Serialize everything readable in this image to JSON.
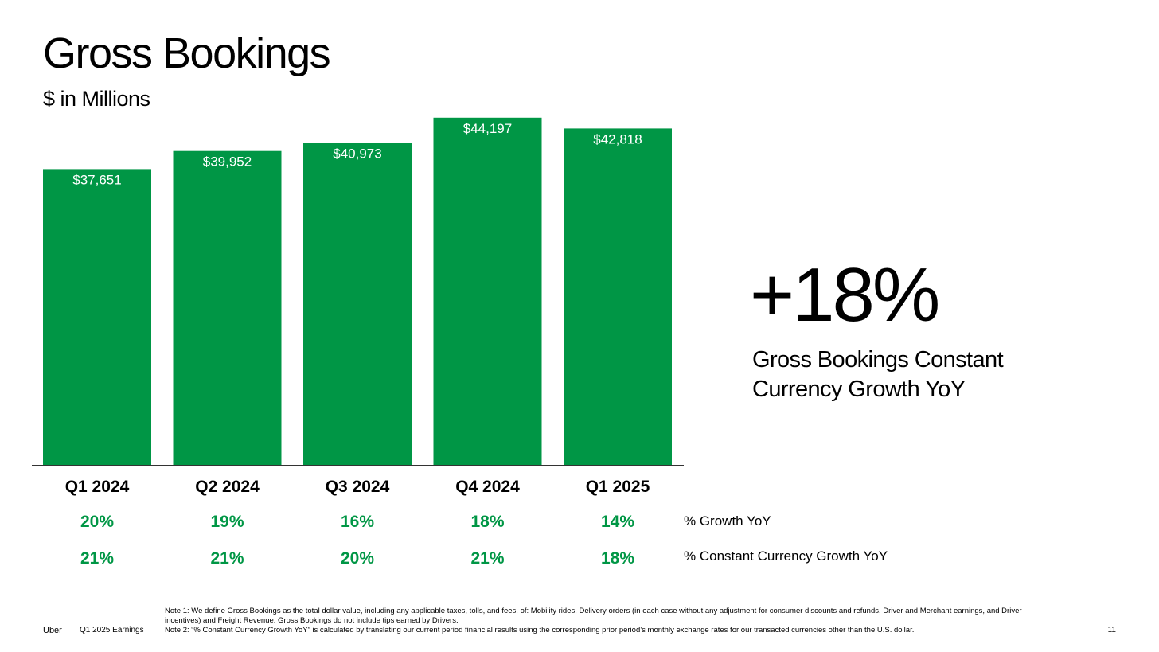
{
  "header": {
    "title": "Gross Bookings",
    "subtitle": "$ in Millions"
  },
  "chart_data": {
    "type": "bar",
    "title": "Gross Bookings",
    "subtitle": "$ in Millions",
    "categories": [
      "Q1 2024",
      "Q2 2024",
      "Q3 2024",
      "Q4 2024",
      "Q1 2025"
    ],
    "values": [
      37651,
      39952,
      40973,
      44197,
      42818
    ],
    "data_labels": [
      "$37,651",
      "$39,952",
      "$40,973",
      "$44,197",
      "$42,818"
    ],
    "ylim": [
      0,
      46000
    ],
    "grid": false,
    "bar_color": "#009645",
    "growth_rows": [
      {
        "label": "% Growth YoY",
        "values": [
          "20%",
          "19%",
          "16%",
          "18%",
          "14%"
        ]
      },
      {
        "label": "% Constant Currency Growth YoY",
        "values": [
          "21%",
          "21%",
          "20%",
          "21%",
          "18%"
        ]
      }
    ]
  },
  "kpi": {
    "value": "+18%",
    "caption": "Gross Bookings Constant Currency Growth YoY"
  },
  "footer": {
    "brand": "Uber",
    "event": "Q1 2025 Earnings",
    "note1": "Note 1: We define Gross Bookings as the total dollar value, including any applicable taxes, tolls, and fees, of: Mobility rides, Delivery orders (in each case without any adjustment for consumer discounts and refunds, Driver and Merchant earnings, and Driver incentives) and Freight Revenue. Gross Bookings do not include tips earned by Drivers.",
    "note2": "Note 2: “% Constant Currency Growth YoY” is calculated by translating our current period financial results using the corresponding prior period’s monthly exchange rates for our transacted currencies other than the U.S. dollar.",
    "page_number": "11"
  },
  "colors": {
    "accent": "#009645",
    "text": "#000000",
    "background": "#ffffff"
  }
}
